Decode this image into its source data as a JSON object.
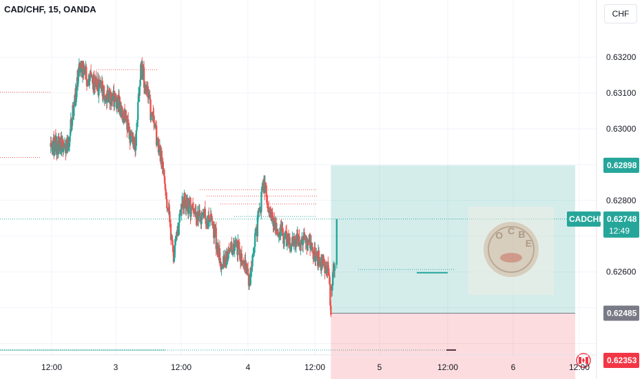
{
  "header": {
    "symbol_title": "CAD/CHF, 15, OANDA",
    "currency_button": "CHF"
  },
  "colors": {
    "up": "#26a69a",
    "down": "#ef5350",
    "profit_zone": "#26a69a",
    "loss_zone": "#f7525f",
    "entry_tag": "#787b86",
    "stop_tag": "#f23645",
    "grid": "#f0f3fa"
  },
  "icons": {
    "flag": "canada-flag-icon",
    "watermark": "ocbe-watermark-logo"
  },
  "watermark_text": "OCBE",
  "chart_data": {
    "type": "candlestick",
    "title": "CAD/CHF, 15, OANDA",
    "ylabel": "CHF",
    "ylim": [
      0.6223,
      0.6339
    ],
    "y_ticks": [
      "0.63200",
      "0.63100",
      "0.63000",
      "0.62800",
      "0.62600"
    ],
    "x_ticks": [
      "12:00",
      "3",
      "12:00",
      "4",
      "12:00",
      "5",
      "12:00",
      "6",
      "12:00"
    ],
    "last_price": {
      "symbol": "CADCHF",
      "value": "0.62748",
      "countdown": "12:49"
    },
    "position": {
      "type": "long",
      "target": "0.62898",
      "entry": "0.62485",
      "stop": "0.62353"
    },
    "grid": true,
    "series": [
      {
        "segments": [
          {
            "t0": -0.5,
            "t1": 6,
            "p0": 0.6295,
            "p1": 0.6296,
            "lo": 0.6289,
            "hi": 0.6302,
            "n": 40,
            "seed": 11
          },
          {
            "t0": 6,
            "t1": 10,
            "p0": 0.6296,
            "p1": 0.6317,
            "lo": 0.6292,
            "hi": 0.6322,
            "n": 28,
            "seed": 23
          },
          {
            "t0": 10,
            "t1": 25,
            "p0": 0.6317,
            "p1": 0.6306,
            "lo": 0.6303,
            "hi": 0.6319,
            "n": 80,
            "seed": 37
          },
          {
            "t0": 25,
            "t1": 30,
            "p0": 0.6306,
            "p1": 0.6294,
            "lo": 0.6291,
            "hi": 0.6308,
            "n": 24,
            "seed": 41
          },
          {
            "t0": 30,
            "t1": 32,
            "p0": 0.6294,
            "p1": 0.6318,
            "lo": 0.6292,
            "hi": 0.632,
            "n": 10,
            "seed": 53
          },
          {
            "t0": 32,
            "t1": 40,
            "p0": 0.6318,
            "p1": 0.6289,
            "lo": 0.6286,
            "hi": 0.632,
            "n": 34,
            "seed": 61
          },
          {
            "t0": 40,
            "t1": 44,
            "p0": 0.6289,
            "p1": 0.6264,
            "lo": 0.6259,
            "hi": 0.6292,
            "n": 20,
            "seed": 71
          },
          {
            "t0": 44,
            "t1": 47,
            "p0": 0.6264,
            "p1": 0.628,
            "lo": 0.6262,
            "hi": 0.6283,
            "n": 14,
            "seed": 79
          },
          {
            "t0": 47,
            "t1": 58,
            "p0": 0.628,
            "p1": 0.6273,
            "lo": 0.6272,
            "hi": 0.6283,
            "n": 50,
            "seed": 83
          },
          {
            "t0": 58,
            "t1": 61,
            "p0": 0.6273,
            "p1": 0.6262,
            "lo": 0.6259,
            "hi": 0.6275,
            "n": 14,
            "seed": 97
          },
          {
            "t0": 61,
            "t1": 66,
            "p0": 0.6262,
            "p1": 0.6268,
            "lo": 0.6261,
            "hi": 0.6273,
            "n": 22,
            "seed": 101
          },
          {
            "t0": 66,
            "t1": 71,
            "p0": 0.6268,
            "p1": 0.6258,
            "lo": 0.6255,
            "hi": 0.6271,
            "n": 22,
            "seed": 109
          },
          {
            "t0": 71,
            "t1": 76,
            "p0": 0.6258,
            "p1": 0.6284,
            "lo": 0.6256,
            "hi": 0.629,
            "n": 22,
            "seed": 113
          },
          {
            "t0": 76,
            "t1": 80,
            "p0": 0.6284,
            "p1": 0.6274,
            "lo": 0.6271,
            "hi": 0.6287,
            "n": 18,
            "seed": 127
          },
          {
            "t0": 80,
            "t1": 86,
            "p0": 0.6274,
            "p1": 0.6267,
            "lo": 0.6264,
            "hi": 0.6276,
            "n": 26,
            "seed": 131
          },
          {
            "t0": 86,
            "t1": 91,
            "p0": 0.6267,
            "p1": 0.627,
            "lo": 0.6264,
            "hi": 0.6273,
            "n": 22,
            "seed": 139
          },
          {
            "t0": 91,
            "t1": 96,
            "p0": 0.627,
            "p1": 0.6263,
            "lo": 0.626,
            "hi": 0.6271,
            "n": 22,
            "seed": 149
          },
          {
            "t0": 96,
            "t1": 99.3,
            "p0": 0.6263,
            "p1": 0.6261,
            "lo": 0.6258,
            "hi": 0.6265,
            "n": 14,
            "seed": 151
          },
          {
            "t0": 99.3,
            "t1": 100.3,
            "p0": 0.6261,
            "p1": 0.6248,
            "lo": 0.6246,
            "hi": 0.6262,
            "n": 4,
            "seed": 157
          },
          {
            "t0": 100.3,
            "t1": 101.7,
            "p0": 0.6256,
            "p1": 0.6262,
            "lo": 0.6253,
            "hi": 0.6264,
            "n": 6,
            "seed": 163
          }
        ],
        "last_bar": {
          "open": 0.6262,
          "high": 0.62748,
          "low": 0.6261,
          "close": 0.62748
        }
      }
    ]
  }
}
